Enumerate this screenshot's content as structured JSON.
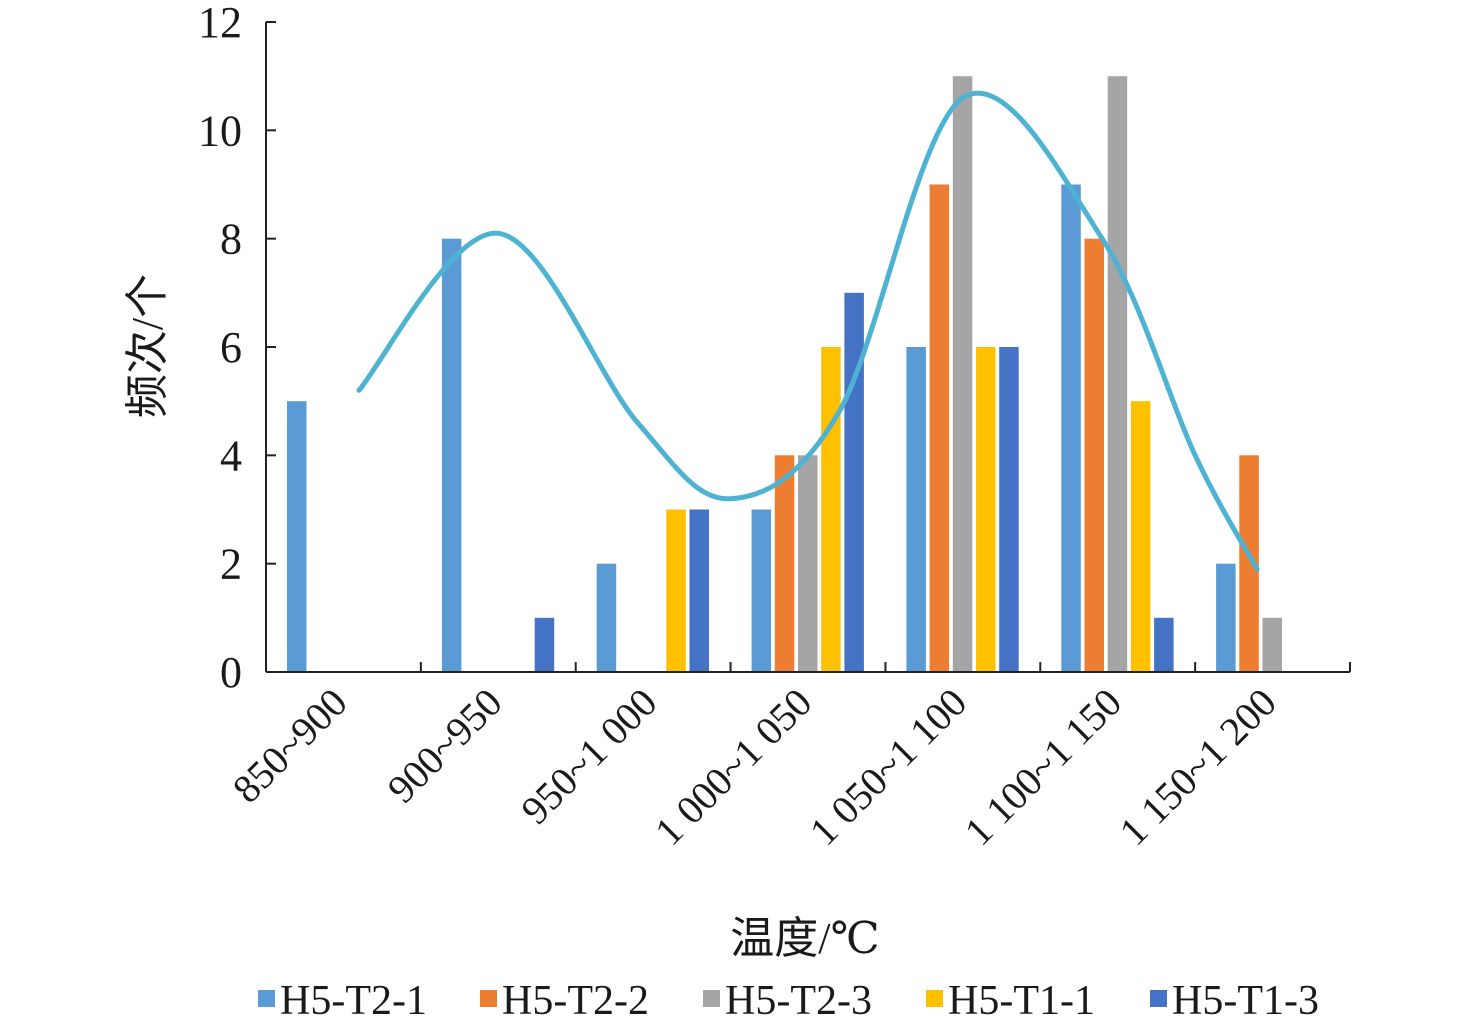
{
  "chart_data": {
    "type": "bar",
    "xlabel": "温度/℃",
    "ylabel": "频次/个",
    "ylim": [
      0,
      12
    ],
    "yticks": [
      "0",
      "2",
      "4",
      "6",
      "8",
      "10",
      "12"
    ],
    "categories": [
      "850~900",
      "900~950",
      "950~1 000",
      "1 000~1 050",
      "1 050~1 100",
      "1 100~1 150",
      "1 150~1 200"
    ],
    "series": [
      {
        "name": "H5-T2-1",
        "color": "#5b9bd5",
        "values": [
          5,
          8,
          2,
          3,
          6,
          9,
          2
        ]
      },
      {
        "name": "H5-T2-2",
        "color": "#ed7d31",
        "values": [
          0,
          0,
          0,
          4,
          9,
          8,
          4
        ]
      },
      {
        "name": "H5-T2-3",
        "color": "#a5a5a5",
        "values": [
          0,
          0,
          0,
          4,
          11,
          11,
          1
        ]
      },
      {
        "name": "H5-T1-1",
        "color": "#ffc000",
        "values": [
          0,
          0,
          3,
          6,
          6,
          5,
          0
        ]
      },
      {
        "name": "H5-T1-3",
        "color": "#4472c4",
        "values": [
          0,
          1,
          3,
          7,
          6,
          1,
          0
        ]
      }
    ],
    "trend_line": {
      "color": "#4eb3d3",
      "x": [
        0.1,
        1,
        1.9,
        2.5,
        3.2,
        4.0,
        4.9,
        5.5,
        5.9
      ],
      "y": [
        5.2,
        8.1,
        4.6,
        3.2,
        4.8,
        10.6,
        8.0,
        4.0,
        1.9
      ]
    },
    "grid": false,
    "legend_position": "bottom"
  }
}
